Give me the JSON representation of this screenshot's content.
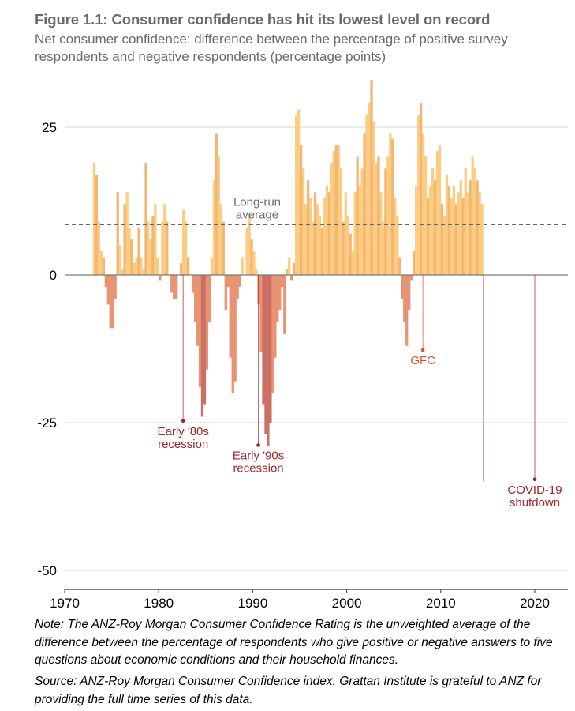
{
  "header": {
    "title": "Figure 1.1: Consumer confidence has hit its lowest level on record",
    "subtitle": "Net consumer confidence: difference between the percentage of positive survey respondents and negative respondents (percentage points)"
  },
  "footer": {
    "note": "Note: The ANZ-Roy Morgan Consumer Confidence Rating is the unweighted average of the difference between the percentage of respondents who give positive or negative answers to five questions about economic conditions and their household finances.",
    "source": "Source: ANZ-Roy Morgan Consumer Confidence index. Grattan Institute is grateful to ANZ for providing the full time series of this data."
  },
  "colors": {
    "positive": "#fbc97a",
    "positive_dark": "#f2b26a",
    "negative": "#e58e6c",
    "negative_dark": "#c9685e",
    "annotation_dark_red": "#a2252b",
    "annotation_orange": "#d7542b",
    "average_label": "#6a6a6a"
  },
  "chart_data": {
    "type": "bar",
    "title": "Figure 1.1: Consumer confidence has hit its lowest level on record",
    "xlabel": "",
    "ylabel": "Net consumer confidence (percentage points)",
    "xlim": [
      1970,
      2023.5
    ],
    "ylim": [
      -52,
      34
    ],
    "x_ticks": [
      1970,
      1980,
      1990,
      2000,
      2010,
      2020
    ],
    "x_tick_labels": [
      "1970",
      "1980",
      "1990",
      "2000",
      "2010",
      "2020"
    ],
    "y_ticks": [
      25,
      0,
      -25,
      -50
    ],
    "y_tick_labels": [
      "25",
      "0",
      "-25",
      "-50"
    ],
    "grid": true,
    "long_run_average": 8.5,
    "long_run_average_label": [
      "Long-run",
      "average"
    ],
    "series_start_year": 1973.0,
    "series_step_years": 0.25,
    "values": [
      19,
      17,
      9,
      4,
      3,
      -2,
      -5,
      -9,
      -9,
      -4,
      14,
      5,
      1,
      12,
      14,
      8,
      6,
      2,
      3,
      8,
      3,
      1,
      19,
      9,
      6,
      10,
      12,
      3,
      -1,
      9,
      12,
      9,
      0,
      -3,
      -4,
      -4,
      0,
      2,
      11,
      9,
      3,
      0,
      -3,
      -8,
      -12,
      -19,
      -24,
      -22,
      -16,
      -8,
      3,
      16,
      24,
      20,
      12,
      9,
      -6,
      -2,
      -14,
      -20,
      -18,
      -4,
      -2,
      3,
      0,
      8,
      10,
      6,
      4,
      1,
      -5,
      -13,
      -22,
      -27,
      -29,
      -25,
      -20,
      -14,
      -8,
      -6,
      -2,
      -10,
      1,
      3,
      -1,
      2,
      27,
      28,
      22,
      18,
      12,
      16,
      13,
      9,
      14,
      12,
      10,
      8,
      13,
      15,
      14,
      19,
      21,
      22,
      22,
      18,
      9,
      14,
      10,
      7,
      4,
      14,
      20,
      15,
      18,
      24,
      27,
      29,
      33,
      26,
      19,
      20,
      14,
      9,
      18,
      20,
      24,
      23,
      13,
      10,
      3,
      -4,
      -8,
      -12,
      -6,
      -1,
      4,
      15,
      27,
      29,
      24,
      20,
      13,
      15,
      18,
      16,
      21,
      22,
      12,
      10,
      17,
      15,
      13,
      15,
      12,
      14,
      16,
      13,
      18,
      14,
      16,
      20,
      18,
      16,
      14,
      12,
      -35
    ],
    "annotations": [
      {
        "label": [
          "Early '80s",
          "recession"
        ],
        "year": 1982.6,
        "value": -24.7,
        "color": "annotation_dark_red"
      },
      {
        "label": [
          "Early '90s",
          "recession"
        ],
        "year": 1990.6,
        "value": -28.8,
        "color": "annotation_dark_red"
      },
      {
        "label": [
          "GFC"
        ],
        "year": 2008.1,
        "value": -12.7,
        "color": "annotation_orange"
      },
      {
        "label": [
          "COVID-19",
          "shutdown"
        ],
        "year": 2020.0,
        "value": -34.6,
        "color": "annotation_dark_red"
      }
    ]
  }
}
